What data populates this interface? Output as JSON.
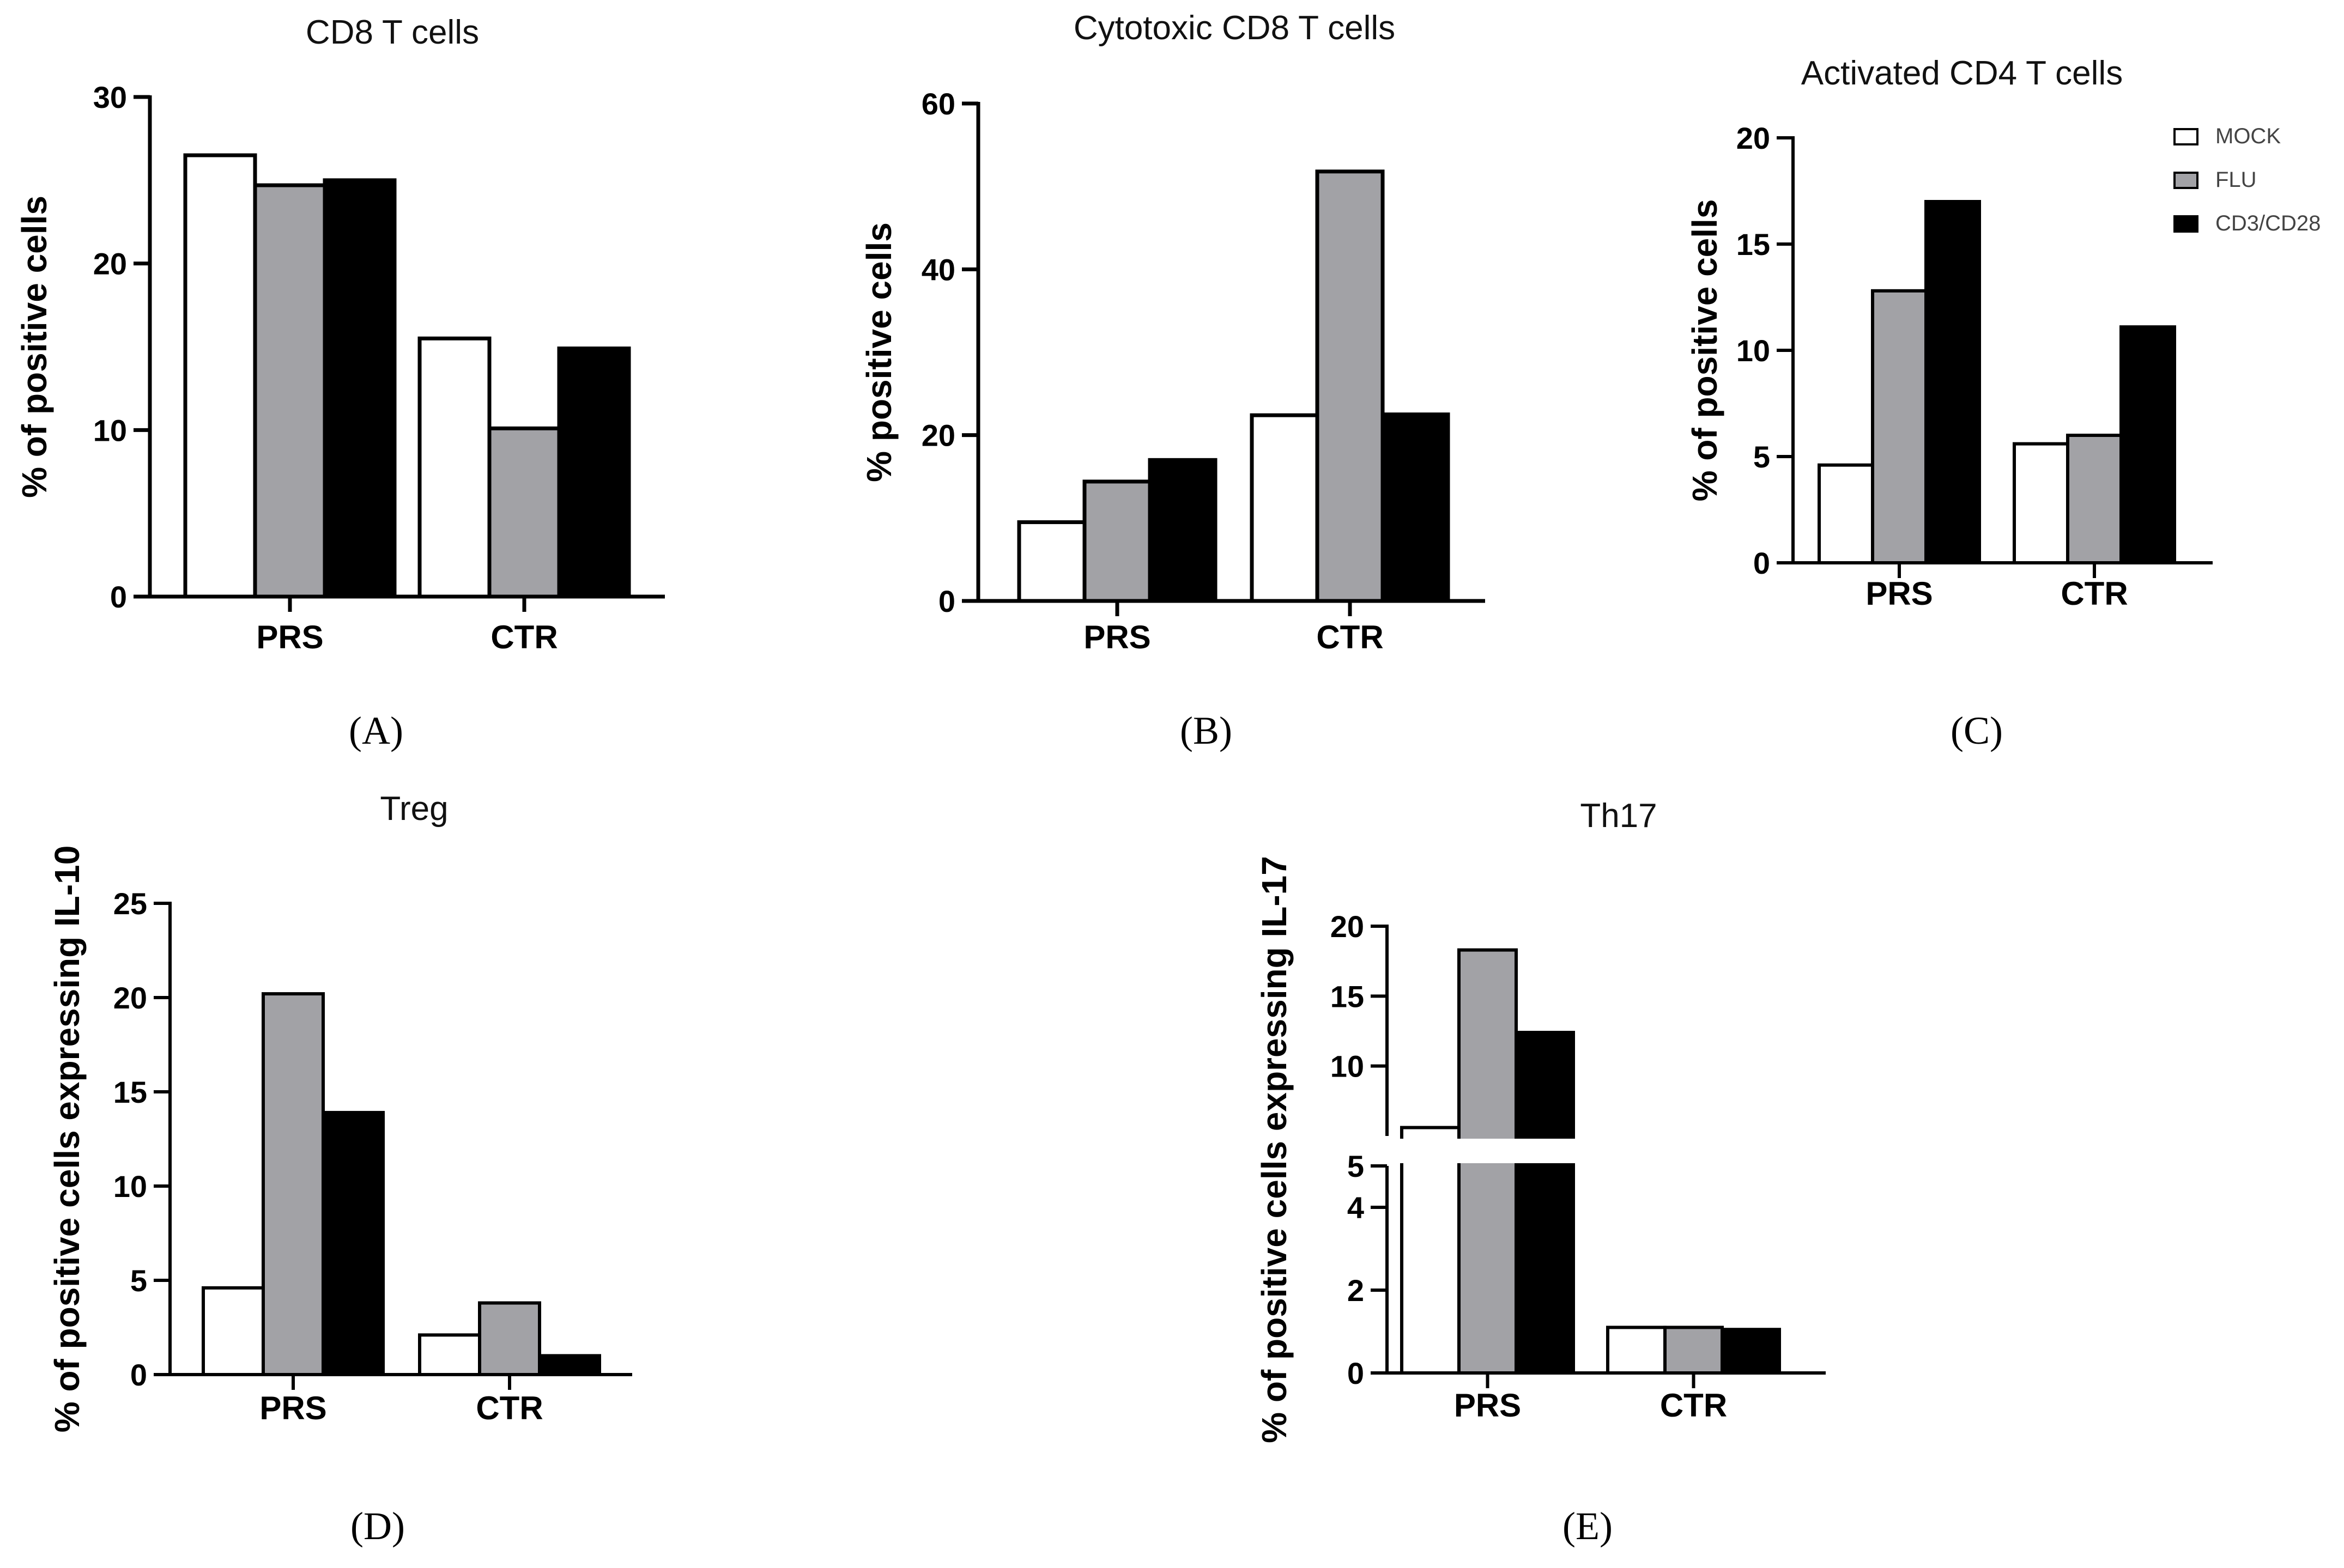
{
  "legend": {
    "series": [
      "MOCK",
      "FLU",
      "CD3/CD28"
    ],
    "colors": [
      "#ffffff",
      "#a2a2a6",
      "#000000"
    ]
  },
  "chart_data": [
    {
      "id": "A",
      "type": "bar",
      "title": "CD8 T cells",
      "ylabel": "% of positive cells",
      "panel_label": "(A)",
      "categories": [
        "PRS",
        "CTR"
      ],
      "ylim": [
        0,
        30
      ],
      "yticks": [
        0,
        10,
        20,
        30
      ],
      "series": [
        {
          "name": "MOCK",
          "values": [
            26.5,
            15.5
          ]
        },
        {
          "name": "FLU",
          "values": [
            24.7,
            10.1
          ]
        },
        {
          "name": "CD3/CD28",
          "values": [
            25.0,
            14.9
          ]
        }
      ]
    },
    {
      "id": "B",
      "type": "bar",
      "title": "Cytotoxic CD8 T cells",
      "ylabel": "% positive cells",
      "panel_label": "(B)",
      "categories": [
        "PRS",
        "CTR"
      ],
      "ylim": [
        0,
        60
      ],
      "yticks": [
        0,
        20,
        40,
        60
      ],
      "series": [
        {
          "name": "MOCK",
          "values": [
            9.5,
            22.4
          ]
        },
        {
          "name": "FLU",
          "values": [
            14.4,
            51.8
          ]
        },
        {
          "name": "CD3/CD28",
          "values": [
            17.0,
            22.5
          ]
        }
      ]
    },
    {
      "id": "C",
      "type": "bar",
      "title": "Activated CD4 T cells",
      "ylabel": "% of positive cells",
      "panel_label": "(C)",
      "categories": [
        "PRS",
        "CTR"
      ],
      "ylim": [
        0,
        20
      ],
      "yticks": [
        0,
        5,
        10,
        15,
        20
      ],
      "series": [
        {
          "name": "MOCK",
          "values": [
            4.6,
            5.6
          ]
        },
        {
          "name": "FLU",
          "values": [
            12.8,
            6.0
          ]
        },
        {
          "name": "CD3/CD28",
          "values": [
            17.0,
            11.1
          ]
        }
      ]
    },
    {
      "id": "D",
      "type": "bar",
      "title": "Treg",
      "ylabel": "% of positive cells expressing IL-10",
      "panel_label": "(D)",
      "categories": [
        "PRS",
        "CTR"
      ],
      "ylim": [
        0,
        25
      ],
      "yticks": [
        0,
        5,
        10,
        15,
        20,
        25
      ],
      "series": [
        {
          "name": "MOCK",
          "values": [
            4.6,
            2.1
          ]
        },
        {
          "name": "FLU",
          "values": [
            20.2,
            3.8
          ]
        },
        {
          "name": "CD3/CD28",
          "values": [
            13.9,
            1.0
          ]
        }
      ]
    },
    {
      "id": "E",
      "type": "bar",
      "title": "Th17",
      "ylabel": "% of positive cells expressing IL-17",
      "panel_label": "(E)",
      "categories": [
        "PRS",
        "CTR"
      ],
      "ylim": [
        0,
        20
      ],
      "axis_break": [
        5,
        5
      ],
      "yticks_lower": [
        0,
        2,
        4
      ],
      "yticks_upper": [
        5,
        10,
        15,
        20
      ],
      "series": [
        {
          "name": "MOCK",
          "values": [
            5.6,
            1.1
          ]
        },
        {
          "name": "FLU",
          "values": [
            18.3,
            1.1
          ]
        },
        {
          "name": "CD3/CD28",
          "values": [
            12.4,
            1.05
          ]
        }
      ]
    }
  ]
}
